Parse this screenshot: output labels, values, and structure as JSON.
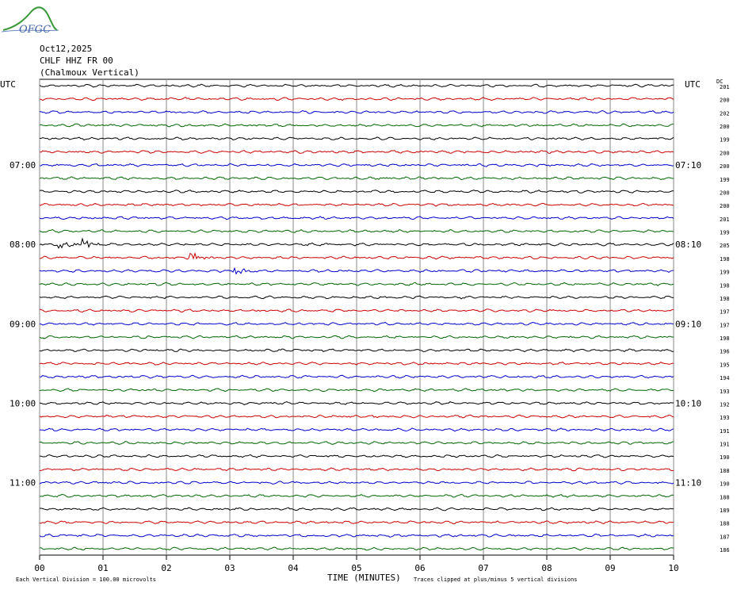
{
  "logo": {
    "text": "OFGC"
  },
  "header": {
    "date": "Oct12,2025",
    "station": "CHLF HHZ FR 00",
    "location": "(Chalmoux Vertical)"
  },
  "time_zone_left": "UTC",
  "time_zone_right": "UTC",
  "dc_label": "DC",
  "left_labels": [
    "07:00",
    "08:00",
    "09:00",
    "10:00",
    "11:00"
  ],
  "right_labels": [
    "07:10",
    "08:10",
    "09:10",
    "10:10",
    "11:10"
  ],
  "x_ticks": [
    "00",
    "01",
    "02",
    "03",
    "04",
    "05",
    "06",
    "07",
    "08",
    "09",
    "10"
  ],
  "x_label": "TIME (MINUTES)",
  "footer_left": "Each Vertical Division =  100.00 microvolts",
  "footer_right": "Traces clipped at plus/minus 5 vertical divisions",
  "trace_colors": [
    "#000000",
    "#cc0000",
    "#0000cc",
    "#006600"
  ],
  "dc": [
    201,
    200,
    202,
    200,
    199,
    200,
    200,
    199,
    200,
    200,
    201,
    199,
    205,
    198,
    199,
    198,
    198,
    197,
    197,
    198,
    196,
    195,
    194,
    193,
    192,
    193,
    191,
    191,
    190,
    188,
    190,
    188,
    189,
    188,
    187,
    186
  ]
}
